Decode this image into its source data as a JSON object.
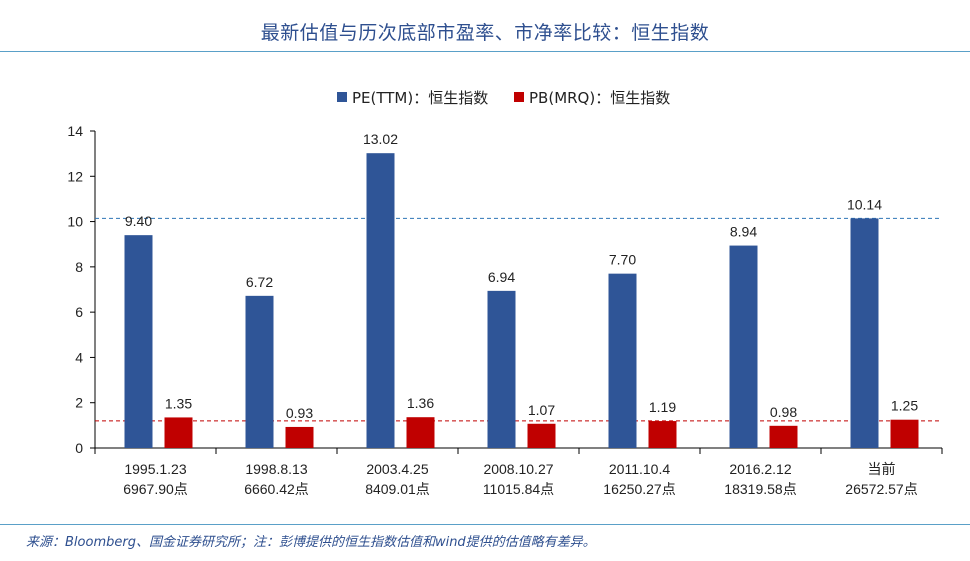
{
  "title": "最新估值与历次底部市盈率、市净率比较：恒生指数",
  "source": "来源：Bloomberg、国金证券研究所；注：彭博提供的恒生指数估值和wind提供的估值略有差异。",
  "chart_data": {
    "type": "bar",
    "categories": [
      [
        "1995.1.23",
        "6967.90点"
      ],
      [
        "1998.8.13",
        "6660.42点"
      ],
      [
        "2003.4.25",
        "8409.01点"
      ],
      [
        "2008.10.27",
        "11015.84点"
      ],
      [
        "2011.10.4",
        "16250.27点"
      ],
      [
        "2016.2.12",
        "18319.58点"
      ],
      [
        "当前",
        "26572.57点"
      ]
    ],
    "series": [
      {
        "name": "PE(TTM)：恒生指数",
        "color": "#2f5597",
        "values": [
          9.4,
          6.72,
          13.02,
          6.94,
          7.7,
          8.94,
          10.14
        ],
        "labels": [
          "9.40",
          "6.72",
          "13.02",
          "6.94",
          "7.70",
          "8.94",
          "10.14"
        ]
      },
      {
        "name": "PB(MRQ)：恒生指数",
        "color": "#c00000",
        "values": [
          1.35,
          0.93,
          1.36,
          1.07,
          1.19,
          0.98,
          1.25
        ],
        "labels": [
          "1.35",
          "0.93",
          "1.36",
          "1.07",
          "1.19",
          "0.98",
          "1.25"
        ]
      }
    ],
    "reference_lines": [
      {
        "value": 10.14,
        "color": "#2e75b6",
        "style": "dashed"
      },
      {
        "value": 1.2,
        "color": "#c00000",
        "style": "dashed"
      }
    ],
    "ylim": [
      0,
      14
    ],
    "yticks": [
      "0",
      "2",
      "4",
      "6",
      "8",
      "10",
      "12",
      "14"
    ],
    "legend_position": "top-center",
    "grid": false
  }
}
